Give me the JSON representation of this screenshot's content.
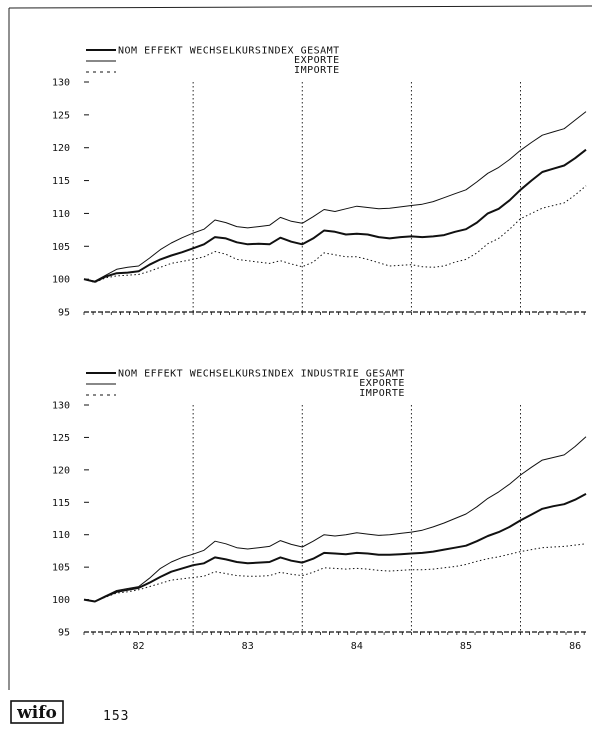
{
  "footer": {
    "logo_text": "wifo",
    "page_number": "153"
  },
  "chart_data": [
    {
      "type": "line",
      "legend": {
        "entries": [
          "NOM EFFEKT WECHSELKURSINDEX GESAMT",
          "EXPORTE",
          "IMPORTE"
        ],
        "placement": "top-left"
      },
      "ylim": [
        95,
        130
      ],
      "yticks": [
        95,
        100,
        105,
        110,
        115,
        120,
        125,
        130
      ],
      "xlim": [
        81.5,
        86.1
      ],
      "xtick_labels": [],
      "year_separators": [
        82.5,
        83.5,
        84.5,
        85.5
      ],
      "series": [
        {
          "style": "solid-thick",
          "x": [
            81.5,
            81.6,
            81.7,
            81.8,
            81.9,
            82.0,
            82.1,
            82.2,
            82.3,
            82.4,
            82.5,
            82.6,
            82.7,
            82.8,
            82.9,
            83.0,
            83.1,
            83.2,
            83.3,
            83.4,
            83.5,
            83.6,
            83.7,
            83.8,
            83.9,
            84.0,
            84.1,
            84.2,
            84.3,
            84.4,
            84.5,
            84.6,
            84.7,
            84.8,
            84.9,
            85.0,
            85.1,
            85.2,
            85.3,
            85.4,
            85.5,
            85.6,
            85.7,
            85.8,
            85.9,
            86.0,
            86.1
          ],
          "values": [
            100,
            99.6,
            100.4,
            100.9,
            101.0,
            101.2,
            102.2,
            103.0,
            103.6,
            104.1,
            104.7,
            105.3,
            106.4,
            106.2,
            105.6,
            105.3,
            105.4,
            105.3,
            106.3,
            105.7,
            105.3,
            106.2,
            107.4,
            107.2,
            106.8,
            106.9,
            106.8,
            106.4,
            106.2,
            106.4,
            106.5,
            106.4,
            106.5,
            106.7,
            107.2,
            107.6,
            108.6,
            110.0,
            110.7,
            112.0,
            113.6,
            115.0,
            116.3,
            116.8,
            117.3,
            118.4,
            119.7
          ]
        },
        {
          "style": "solid-thin",
          "x": [
            81.5,
            81.6,
            81.7,
            81.8,
            81.9,
            82.0,
            82.1,
            82.2,
            82.3,
            82.4,
            82.5,
            82.6,
            82.7,
            82.8,
            82.9,
            83.0,
            83.1,
            83.2,
            83.3,
            83.4,
            83.5,
            83.6,
            83.7,
            83.8,
            83.9,
            84.0,
            84.1,
            84.2,
            84.3,
            84.4,
            84.5,
            84.6,
            84.7,
            84.8,
            84.9,
            85.0,
            85.1,
            85.2,
            85.3,
            85.4,
            85.5,
            85.6,
            85.7,
            85.8,
            85.9,
            86.0,
            86.1
          ],
          "values": [
            100,
            99.7,
            100.6,
            101.5,
            101.8,
            102.0,
            103.2,
            104.5,
            105.5,
            106.3,
            107.0,
            107.6,
            109.0,
            108.6,
            108.0,
            107.8,
            108.0,
            108.2,
            109.4,
            108.8,
            108.5,
            109.5,
            110.6,
            110.3,
            110.7,
            111.1,
            110.9,
            110.7,
            110.8,
            111.0,
            111.2,
            111.4,
            111.8,
            112.4,
            113.0,
            113.6,
            114.8,
            116.1,
            117.0,
            118.2,
            119.6,
            120.8,
            121.9,
            122.4,
            122.9,
            124.2,
            125.5
          ]
        },
        {
          "style": "dotted",
          "x": [
            81.5,
            81.6,
            81.7,
            81.8,
            81.9,
            82.0,
            82.1,
            82.2,
            82.3,
            82.4,
            82.5,
            82.6,
            82.7,
            82.8,
            82.9,
            83.0,
            83.1,
            83.2,
            83.3,
            83.4,
            83.5,
            83.6,
            83.7,
            83.8,
            83.9,
            84.0,
            84.1,
            84.2,
            84.3,
            84.4,
            84.5,
            84.6,
            84.7,
            84.8,
            84.9,
            85.0,
            85.1,
            85.2,
            85.3,
            85.4,
            85.5,
            85.6,
            85.7,
            85.8,
            85.9,
            86.0,
            86.1
          ],
          "values": [
            100,
            99.5,
            100.2,
            100.5,
            100.6,
            100.7,
            101.2,
            101.8,
            102.4,
            102.7,
            103.0,
            103.4,
            104.2,
            103.8,
            103.0,
            102.8,
            102.6,
            102.4,
            102.8,
            102.3,
            101.9,
            102.6,
            104.0,
            103.7,
            103.4,
            103.4,
            103.0,
            102.5,
            102.0,
            102.1,
            102.2,
            101.9,
            101.8,
            102.0,
            102.6,
            103.0,
            104.0,
            105.4,
            106.2,
            107.6,
            109.2,
            110.0,
            110.8,
            111.2,
            111.6,
            112.8,
            114.2
          ]
        }
      ]
    },
    {
      "type": "line",
      "legend": {
        "entries": [
          "NOM EFFEKT WECHSELKURSINDEX INDUSTRIE GESAMT",
          "EXPORTE",
          "IMPORTE"
        ],
        "placement": "top-left"
      },
      "ylim": [
        95,
        130
      ],
      "yticks": [
        95,
        100,
        105,
        110,
        115,
        120,
        125,
        130
      ],
      "xlim": [
        81.5,
        86.1
      ],
      "xtick_labels": [
        "82",
        "83",
        "84",
        "85",
        "86"
      ],
      "year_separators": [
        82.5,
        83.5,
        84.5,
        85.5
      ],
      "series": [
        {
          "style": "solid-thick",
          "x": [
            81.5,
            81.6,
            81.7,
            81.8,
            81.9,
            82.0,
            82.1,
            82.2,
            82.3,
            82.4,
            82.5,
            82.6,
            82.7,
            82.8,
            82.9,
            83.0,
            83.1,
            83.2,
            83.3,
            83.4,
            83.5,
            83.6,
            83.7,
            83.8,
            83.9,
            84.0,
            84.1,
            84.2,
            84.3,
            84.4,
            84.5,
            84.6,
            84.7,
            84.8,
            84.9,
            85.0,
            85.1,
            85.2,
            85.3,
            85.4,
            85.5,
            85.6,
            85.7,
            85.8,
            85.9,
            86.0,
            86.1
          ],
          "values": [
            100,
            99.7,
            100.5,
            101.2,
            101.5,
            101.8,
            102.6,
            103.5,
            104.3,
            104.8,
            105.3,
            105.6,
            106.5,
            106.2,
            105.8,
            105.6,
            105.7,
            105.8,
            106.5,
            106.0,
            105.7,
            106.3,
            107.2,
            107.1,
            107.0,
            107.2,
            107.1,
            106.9,
            106.9,
            107.0,
            107.1,
            107.2,
            107.4,
            107.7,
            108.0,
            108.3,
            109.0,
            109.8,
            110.4,
            111.2,
            112.2,
            113.1,
            114.0,
            114.4,
            114.7,
            115.4,
            116.3
          ]
        },
        {
          "style": "solid-thin",
          "x": [
            81.5,
            81.6,
            81.7,
            81.8,
            81.9,
            82.0,
            82.1,
            82.2,
            82.3,
            82.4,
            82.5,
            82.6,
            82.7,
            82.8,
            82.9,
            83.0,
            83.1,
            83.2,
            83.3,
            83.4,
            83.5,
            83.6,
            83.7,
            83.8,
            83.9,
            84.0,
            84.1,
            84.2,
            84.3,
            84.4,
            84.5,
            84.6,
            84.7,
            84.8,
            84.9,
            85.0,
            85.1,
            85.2,
            85.3,
            85.4,
            85.5,
            85.6,
            85.7,
            85.8,
            85.9,
            86.0,
            86.1
          ],
          "values": [
            100,
            99.7,
            100.6,
            101.4,
            101.7,
            102.0,
            103.3,
            104.8,
            105.8,
            106.5,
            107.0,
            107.6,
            109.0,
            108.6,
            108.0,
            107.8,
            108.0,
            108.2,
            109.1,
            108.5,
            108.1,
            109.0,
            110.0,
            109.8,
            110.0,
            110.3,
            110.1,
            109.9,
            110.0,
            110.2,
            110.4,
            110.7,
            111.2,
            111.8,
            112.5,
            113.2,
            114.3,
            115.6,
            116.6,
            117.8,
            119.2,
            120.4,
            121.5,
            121.9,
            122.3,
            123.6,
            125.1
          ]
        },
        {
          "style": "dotted",
          "x": [
            81.5,
            81.6,
            81.7,
            81.8,
            81.9,
            82.0,
            82.1,
            82.2,
            82.3,
            82.4,
            82.5,
            82.6,
            82.7,
            82.8,
            82.9,
            83.0,
            83.1,
            83.2,
            83.3,
            83.4,
            83.5,
            83.6,
            83.7,
            83.8,
            83.9,
            84.0,
            84.1,
            84.2,
            84.3,
            84.4,
            84.5,
            84.6,
            84.7,
            84.8,
            84.9,
            85.0,
            85.1,
            85.2,
            85.3,
            85.4,
            85.5,
            85.6,
            85.7,
            85.8,
            85.9,
            86.0,
            86.1
          ],
          "values": [
            100,
            99.7,
            100.4,
            101.0,
            101.2,
            101.5,
            102.0,
            102.5,
            103.0,
            103.2,
            103.4,
            103.6,
            104.3,
            104.0,
            103.7,
            103.6,
            103.6,
            103.7,
            104.2,
            103.9,
            103.7,
            104.2,
            104.9,
            104.8,
            104.7,
            104.8,
            104.7,
            104.5,
            104.4,
            104.5,
            104.6,
            104.6,
            104.7,
            104.9,
            105.1,
            105.4,
            105.9,
            106.3,
            106.6,
            107.0,
            107.4,
            107.7,
            108.0,
            108.1,
            108.2,
            108.4,
            108.6
          ]
        }
      ]
    }
  ]
}
